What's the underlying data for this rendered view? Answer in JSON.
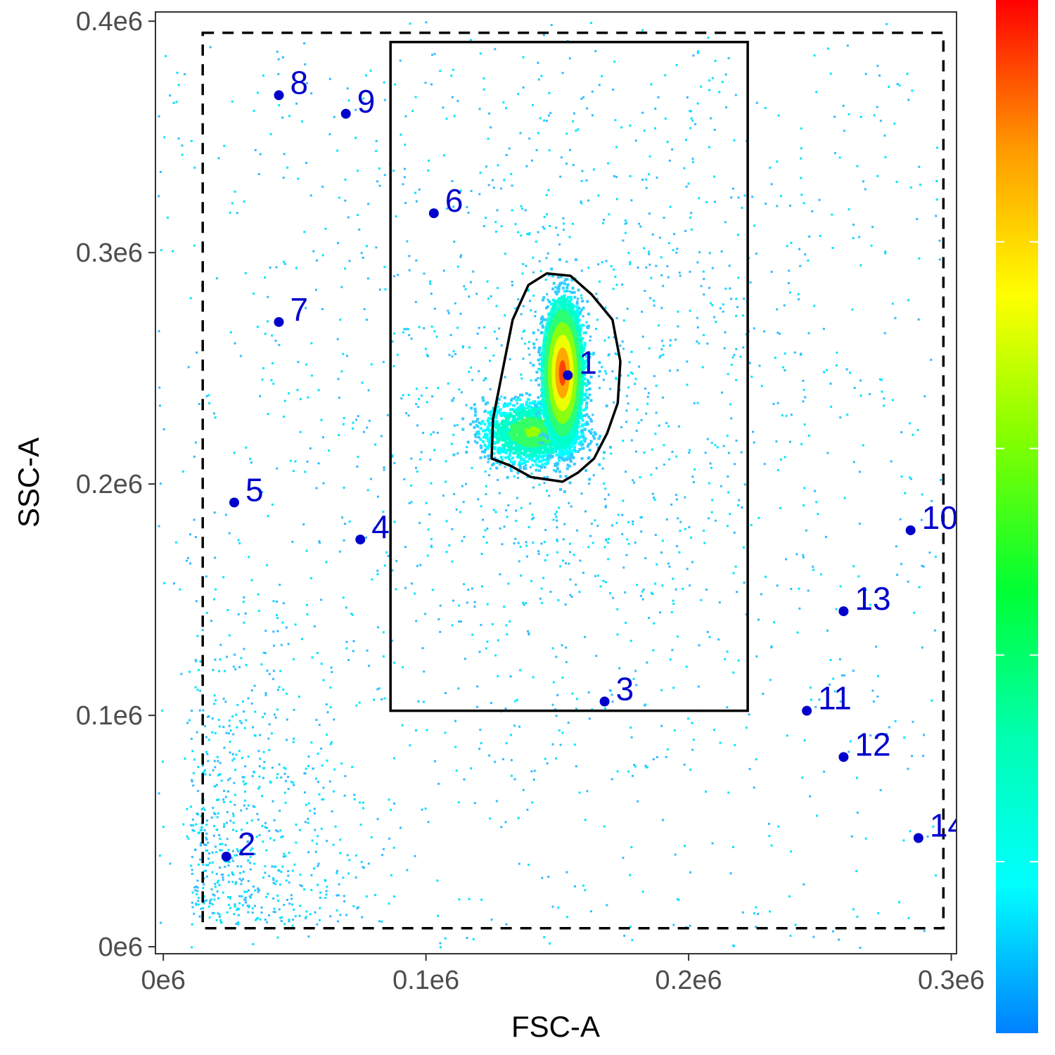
{
  "chart_data": {
    "type": "scatter",
    "subtype": "flow-cytometry density plot",
    "title": "",
    "xlabel": "FSC-A",
    "ylabel": "SSC-A",
    "xlim": [
      -3000,
      302000
    ],
    "ylim": [
      -3000,
      404000
    ],
    "x_ticks": [
      {
        "value": 0,
        "label": "0e6"
      },
      {
        "value": 100000,
        "label": "0.1e6"
      },
      {
        "value": 200000,
        "label": "0.2e6"
      },
      {
        "value": 300000,
        "label": "0.3e6"
      }
    ],
    "y_ticks": [
      {
        "value": 0,
        "label": "0e6"
      },
      {
        "value": 100000,
        "label": "0.1e6"
      },
      {
        "value": 200000,
        "label": "0.2e6"
      },
      {
        "value": 300000,
        "label": "0.3e6"
      },
      {
        "value": 400000,
        "label": "0.4e6"
      }
    ],
    "grid": false,
    "point_color": "#0000cc",
    "labeled_points": [
      {
        "label": "1",
        "x": 154000,
        "y": 247000
      },
      {
        "label": "2",
        "x": 24000,
        "y": 39000
      },
      {
        "label": "3",
        "x": 168000,
        "y": 106000
      },
      {
        "label": "4",
        "x": 75000,
        "y": 176000
      },
      {
        "label": "5",
        "x": 27000,
        "y": 192000
      },
      {
        "label": "6",
        "x": 103000,
        "y": 317000
      },
      {
        "label": "7",
        "x": 44000,
        "y": 270000
      },
      {
        "label": "8",
        "x": 44000,
        "y": 368000
      },
      {
        "label": "9",
        "x": 69500,
        "y": 360000
      },
      {
        "label": "10",
        "x": 284500,
        "y": 180000
      },
      {
        "label": "11",
        "x": 245000,
        "y": 102000
      },
      {
        "label": "12",
        "x": 259000,
        "y": 82000
      },
      {
        "label": "13",
        "x": 259000,
        "y": 145000
      },
      {
        "label": "14",
        "x": 287500,
        "y": 47000
      }
    ],
    "gates": {
      "dashed_rectangle": {
        "x": [
          15000,
          297000
        ],
        "y": [
          8000,
          395000
        ]
      },
      "solid_rectangle": {
        "x": [
          86500,
          222500
        ],
        "y": [
          102000,
          391000
        ]
      },
      "polygon": [
        [
          146000,
          291000
        ],
        [
          155000,
          290000
        ],
        [
          163000,
          282000
        ],
        [
          171000,
          271000
        ],
        [
          174000,
          253000
        ],
        [
          173000,
          235000
        ],
        [
          169000,
          222000
        ],
        [
          164000,
          211000
        ],
        [
          158000,
          205000
        ],
        [
          152000,
          201000
        ],
        [
          146000,
          202000
        ],
        [
          140000,
          203000
        ],
        [
          132000,
          208000
        ],
        [
          125000,
          211000
        ],
        [
          125500,
          228000
        ],
        [
          133000,
          271000
        ],
        [
          139000,
          286000
        ]
      ]
    },
    "density": {
      "clusters": [
        {
          "x": 152000,
          "y": 248000,
          "sd_x": 3800,
          "sd_y": 15000,
          "weight": 0.55
        },
        {
          "x": 140000,
          "y": 223000,
          "sd_x": 9000,
          "sd_y": 6500,
          "weight": 0.25
        },
        {
          "x": 154000,
          "y": 245000,
          "sd_x": 30000,
          "sd_y": 60000,
          "weight": 0.2
        }
      ],
      "colorbar": {
        "colors": [
          "#0080ff",
          "#00ffff",
          "#00ffb0",
          "#00ff33",
          "#7fff00",
          "#ffff00",
          "#ff9900",
          "#ff0000"
        ],
        "labels": []
      }
    }
  }
}
